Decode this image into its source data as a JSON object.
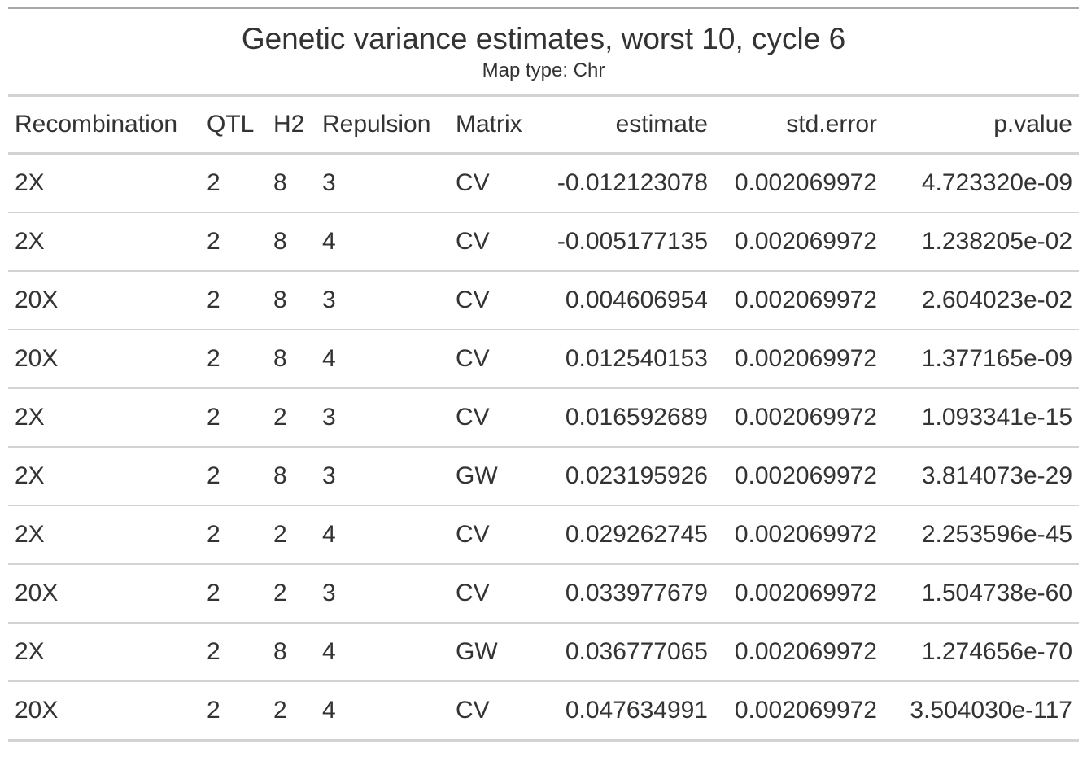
{
  "chart_data": {
    "type": "table",
    "title": "Genetic variance estimates, worst 10, cycle 6",
    "subtitle": "Map type: Chr",
    "columns": [
      {
        "key": "Recombination",
        "label": "Recombination",
        "align": "left"
      },
      {
        "key": "QTL",
        "label": "QTL",
        "align": "left"
      },
      {
        "key": "H2",
        "label": "H2",
        "align": "left"
      },
      {
        "key": "Repulsion",
        "label": "Repulsion",
        "align": "left"
      },
      {
        "key": "Matrix",
        "label": "Matrix",
        "align": "left"
      },
      {
        "key": "estimate",
        "label": "estimate",
        "align": "right"
      },
      {
        "key": "std_error",
        "label": "std.error",
        "align": "right"
      },
      {
        "key": "p_value",
        "label": "p.value",
        "align": "right"
      }
    ],
    "rows": [
      [
        "2X",
        "2",
        "8",
        "3",
        "CV",
        "-0.012123078",
        "0.002069972",
        "4.723320e-09"
      ],
      [
        "2X",
        "2",
        "8",
        "4",
        "CV",
        "-0.005177135",
        "0.002069972",
        "1.238205e-02"
      ],
      [
        "20X",
        "2",
        "8",
        "3",
        "CV",
        "0.004606954",
        "0.002069972",
        "2.604023e-02"
      ],
      [
        "20X",
        "2",
        "8",
        "4",
        "CV",
        "0.012540153",
        "0.002069972",
        "1.377165e-09"
      ],
      [
        "2X",
        "2",
        "2",
        "3",
        "CV",
        "0.016592689",
        "0.002069972",
        "1.093341e-15"
      ],
      [
        "2X",
        "2",
        "8",
        "3",
        "GW",
        "0.023195926",
        "0.002069972",
        "3.814073e-29"
      ],
      [
        "2X",
        "2",
        "2",
        "4",
        "CV",
        "0.029262745",
        "0.002069972",
        "2.253596e-45"
      ],
      [
        "20X",
        "2",
        "2",
        "3",
        "CV",
        "0.033977679",
        "0.002069972",
        "1.504738e-60"
      ],
      [
        "2X",
        "2",
        "8",
        "4",
        "GW",
        "0.036777065",
        "0.002069972",
        "1.274656e-70"
      ],
      [
        "20X",
        "2",
        "2",
        "4",
        "CV",
        "0.047634991",
        "0.002069972",
        "3.504030e-117"
      ]
    ]
  }
}
